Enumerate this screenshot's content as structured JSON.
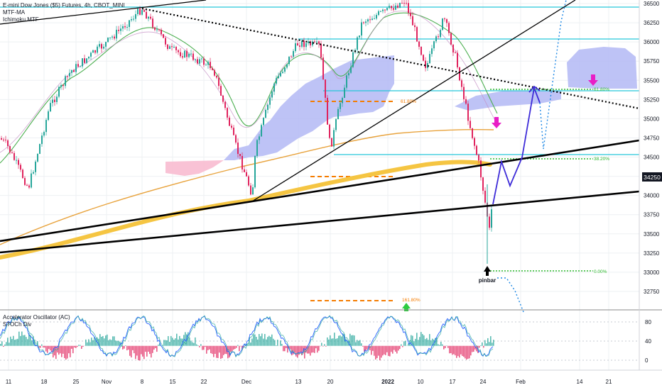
{
  "legend": {
    "symbol": "E-mini Dow Jones ($5) Futures, 4h, CBOT_MINI",
    "indicator_1": "MTF-MA",
    "indicator_2": "Ichimoku MTF"
  },
  "oscillator_legend": {
    "line_1": "Accelerator Oscillator (AC)",
    "line_2": "STOCh Div"
  },
  "annotations": {
    "pinbar": "pinbar",
    "fib_618_upper": "61.80%",
    "fib_618_mid": "61.80%",
    "fib_382": "38.20%",
    "fib_0": "0.00%",
    "fib_1618": "161.80%"
  },
  "current_price_label": "34250",
  "chart_data": {
    "type": "line",
    "title": "E-mini Dow Jones ($5) Futures, 4h, CBOT_MINI",
    "price_axis": {
      "ticks": [
        36500,
        36250,
        36000,
        35750,
        35500,
        35250,
        35000,
        34750,
        34500,
        34250,
        34000,
        33750,
        33500,
        33250,
        33000,
        32750
      ],
      "ylim": [
        32600,
        36600
      ],
      "current_price": 34250
    },
    "oscillator_axis": {
      "ticks": [
        80,
        40,
        0
      ],
      "ylim": [
        -10,
        100
      ]
    },
    "x_axis": {
      "ticks": [
        "11",
        "18",
        "25",
        "Nov",
        "8",
        "15",
        "22",
        "Dec",
        "13",
        "20",
        "2022",
        "10",
        "17",
        "24",
        "Feb",
        "14",
        "21"
      ]
    },
    "series": [
      {
        "name": "E-mini Dow Jones ($5) Futures",
        "kind": "candles",
        "x": [
          "11",
          "18",
          "25",
          "Nov",
          "8",
          "15",
          "22",
          "Dec",
          "13",
          "20",
          "2022",
          "10",
          "17",
          "24"
        ],
        "values": [
          34550,
          34250,
          35400,
          35800,
          36400,
          36000,
          35600,
          34100,
          35900,
          35200,
          36500,
          36000,
          35300,
          34250
        ]
      }
    ],
    "horizontal_levels": [
      36450,
      36050,
      35350,
      34550,
      32950
    ],
    "fib_levels": [
      {
        "label": "61.80%",
        "price": 35300
      },
      {
        "label": "61.80%",
        "price": 35400
      },
      {
        "label": "38.20%",
        "price": 34500
      },
      {
        "label": "0.00%",
        "price": 33000
      },
      {
        "label": "161.80%",
        "price": 32650
      }
    ],
    "colors": {
      "bull_candle": "#26a69a",
      "bear_candle": "#e0245e",
      "horizontal_level": "#26c6da",
      "cloud": "#b3b9f5",
      "pink_cloud": "#f8bbd0",
      "fast_ma": "#e8a33d",
      "slow_ma": "#f5c542",
      "green_ma": "#4caf50",
      "projection": "#3d2bd8",
      "projection_dotted": "#1e88e5",
      "fib_dashed": "#f57c00",
      "fib_dotted": "#2eb82e",
      "arrow_down": "#e91ec6",
      "arrow_up": "#2ecc40",
      "trendline": "#000000"
    },
    "grid": true
  }
}
